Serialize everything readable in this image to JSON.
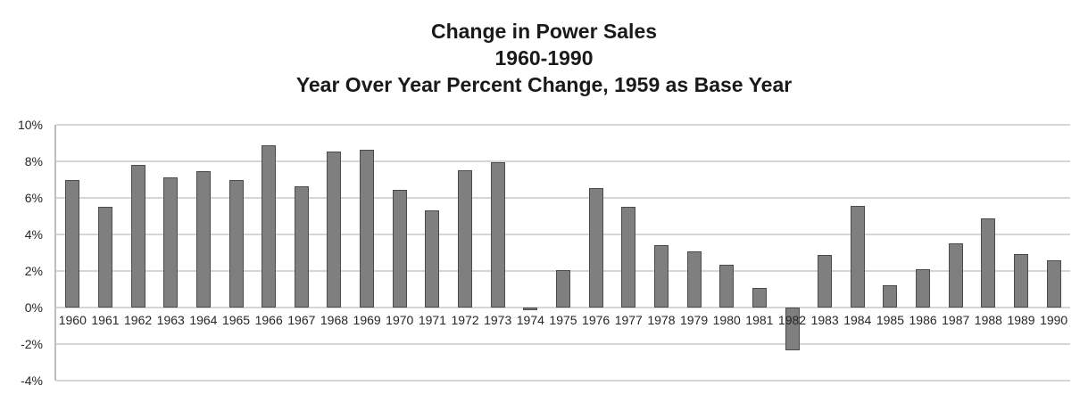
{
  "title": {
    "line1": "Change in Power Sales",
    "line2": "1960-1990",
    "line3": "Year Over Year Percent Change, 1959 as Base Year"
  },
  "axes": {
    "y_tick_labels": [
      "10%",
      "8%",
      "6%",
      "4%",
      "2%",
      "0%",
      "-2%",
      "-4%"
    ],
    "y_tick_values": [
      10,
      8,
      6,
      4,
      2,
      0,
      -2,
      -4
    ]
  },
  "chart_data": {
    "type": "bar",
    "title": "Change in Power Sales 1960-1990",
    "subtitle": "Year Over Year Percent Change, 1959 as Base Year",
    "categories": [
      "1960",
      "1961",
      "1962",
      "1963",
      "1964",
      "1965",
      "1966",
      "1967",
      "1968",
      "1969",
      "1970",
      "1971",
      "1972",
      "1973",
      "1974",
      "1975",
      "1976",
      "1977",
      "1978",
      "1979",
      "1980",
      "1981",
      "1982",
      "1983",
      "1984",
      "1985",
      "1986",
      "1987",
      "1988",
      "1989",
      "1990"
    ],
    "values": [
      7.0,
      5.5,
      7.8,
      7.1,
      7.45,
      7.0,
      8.9,
      6.65,
      8.55,
      8.65,
      6.45,
      5.3,
      7.5,
      7.95,
      -0.15,
      2.05,
      6.55,
      5.5,
      3.4,
      3.05,
      2.35,
      1.05,
      -2.35,
      2.9,
      5.55,
      1.2,
      2.1,
      3.5,
      4.9,
      2.95,
      2.6
    ],
    "xlabel": "",
    "ylabel": "",
    "ylim": [
      -4,
      10
    ],
    "yticks": [
      -4,
      -2,
      0,
      2,
      4,
      6,
      8,
      10
    ],
    "grid": true,
    "legend": false
  },
  "style": {
    "bar_fill": "#7f7f7f",
    "bar_border": "#4c4c4c",
    "gridline_color": "#d6d6d6",
    "axis_line_color": "#bdbdbd",
    "text_color": "#1a1a1a"
  }
}
